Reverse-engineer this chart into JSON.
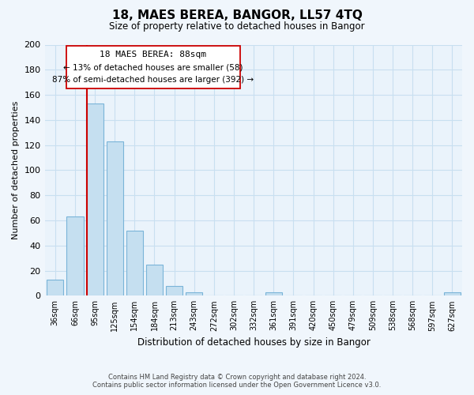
{
  "title": "18, MAES BEREA, BANGOR, LL57 4TQ",
  "subtitle": "Size of property relative to detached houses in Bangor",
  "xlabel": "Distribution of detached houses by size in Bangor",
  "ylabel": "Number of detached properties",
  "bar_labels": [
    "36sqm",
    "66sqm",
    "95sqm",
    "125sqm",
    "154sqm",
    "184sqm",
    "213sqm",
    "243sqm",
    "272sqm",
    "302sqm",
    "332sqm",
    "361sqm",
    "391sqm",
    "420sqm",
    "450sqm",
    "479sqm",
    "509sqm",
    "538sqm",
    "568sqm",
    "597sqm",
    "627sqm"
  ],
  "bar_values": [
    13,
    63,
    153,
    123,
    52,
    25,
    8,
    3,
    0,
    0,
    0,
    3,
    0,
    0,
    0,
    0,
    0,
    0,
    0,
    0,
    3
  ],
  "bar_color": "#c5dff0",
  "bar_edge_color": "#7ab4d8",
  "ylim": [
    0,
    200
  ],
  "yticks": [
    0,
    20,
    40,
    60,
    80,
    100,
    120,
    140,
    160,
    180,
    200
  ],
  "annotation_title": "18 MAES BEREA: 88sqm",
  "annotation_line1": "← 13% of detached houses are smaller (58)",
  "annotation_line2": "87% of semi-detached houses are larger (392) →",
  "footer_line1": "Contains HM Land Registry data © Crown copyright and database right 2024.",
  "footer_line2": "Contains public sector information licensed under the Open Government Licence v3.0.",
  "bg_color": "#f0f6fc",
  "plot_bg_color": "#eaf3fb",
  "grid_color": "#c8dff0",
  "red_line_color": "#cc0000",
  "property_line_x": 1.6
}
